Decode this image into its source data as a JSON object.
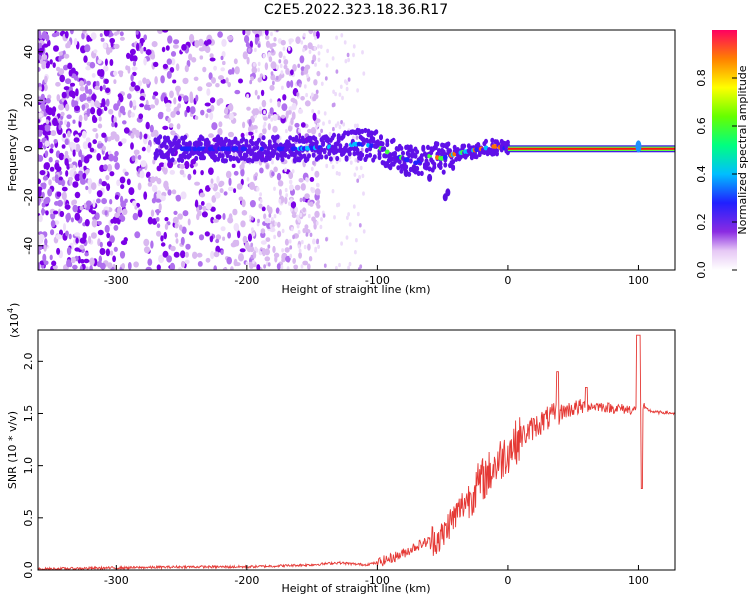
{
  "chart_data": [
    {
      "type": "heatmap",
      "title": "C2E5.2022.323.18.36.R17",
      "xlabel": "Height of straight line (km)",
      "ylabel": "Frequency (Hz)",
      "xlim": [
        -360,
        128
      ],
      "ylim": [
        -50,
        49
      ],
      "x_ticks": [
        -300,
        -200,
        -100,
        0,
        100
      ],
      "y_ticks": [
        -40,
        -20,
        0,
        20,
        40
      ],
      "colorbar": {
        "label": "Normalized spectral amplitude",
        "range": [
          0,
          1
        ],
        "ticks": [
          "0.0",
          "0.2",
          "0.4",
          "0.6",
          "0.8"
        ]
      },
      "ridge_trace": {
        "x": [
          -250,
          -220,
          -190,
          -160,
          -130,
          -115,
          -100,
          -90,
          -80,
          -70,
          -60,
          -50,
          -40,
          -30,
          -20,
          -10,
          0,
          50,
          100,
          128
        ],
        "y": [
          0,
          0,
          0,
          0,
          1,
          2,
          1,
          -2,
          -4,
          -6,
          -3,
          -4,
          -2,
          -1,
          0,
          1,
          0,
          0,
          0,
          0
        ]
      },
      "grid": false
    },
    {
      "type": "line",
      "title": "",
      "xlabel": "Height of straight line (km)",
      "ylabel": "SNR (10 * v/v)",
      "y_scale_note": "(x10",
      "y_scale_exp": "4",
      "xlim": [
        -360,
        128
      ],
      "ylim": [
        0,
        2.3
      ],
      "x_ticks": [
        -300,
        -200,
        -100,
        0,
        100
      ],
      "y_ticks": [
        "0.0",
        "0.5",
        "1.0",
        "1.5",
        "2.0"
      ],
      "series": [
        {
          "color": "#e53935",
          "x": [
            -360,
            -300,
            -250,
            -200,
            -150,
            -130,
            -120,
            -110,
            -100,
            -90,
            -80,
            -70,
            -60,
            -50,
            -45,
            -40,
            -35,
            -30,
            -25,
            -20,
            -15,
            -10,
            -5,
            0,
            5,
            10,
            15,
            20,
            25,
            30,
            35,
            40,
            45,
            50,
            55,
            60,
            65,
            70,
            75,
            80,
            85,
            90,
            95,
            100,
            103,
            105,
            110,
            115,
            120,
            128
          ],
          "y": [
            0.01,
            0.02,
            0.03,
            0.03,
            0.05,
            0.07,
            0.06,
            0.05,
            0.07,
            0.11,
            0.16,
            0.23,
            0.28,
            0.32,
            0.45,
            0.52,
            0.62,
            0.7,
            0.78,
            0.86,
            0.92,
            1.0,
            1.07,
            1.14,
            1.21,
            1.27,
            1.32,
            1.37,
            1.41,
            1.45,
            1.48,
            1.51,
            1.53,
            1.55,
            1.56,
            1.56,
            1.57,
            1.57,
            1.56,
            1.55,
            1.55,
            1.54,
            1.54,
            1.52,
            1.55,
            1.55,
            1.52,
            1.51,
            1.51,
            1.5
          ]
        }
      ],
      "grid": false
    }
  ]
}
